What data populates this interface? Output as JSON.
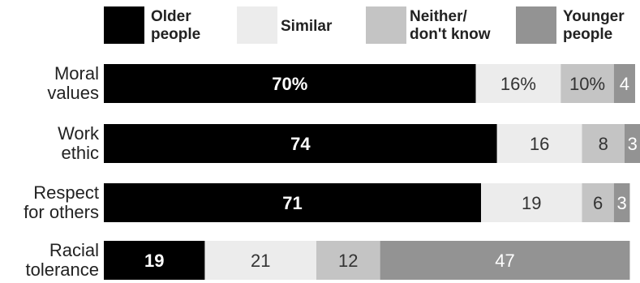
{
  "chart_data": {
    "type": "bar",
    "orientation": "horizontal",
    "stacked": true,
    "categories": [
      [
        "Moral",
        "values"
      ],
      [
        "Work",
        "ethic"
      ],
      [
        "Respect",
        "for others"
      ],
      [
        "Racial",
        "tolerance"
      ]
    ],
    "series": [
      {
        "name": [
          "Older",
          "people"
        ],
        "color": "#000000",
        "text_color": "#ffffff",
        "bold": true,
        "values": [
          70,
          74,
          71,
          19
        ],
        "labels": [
          "70%",
          "74",
          "71",
          "19"
        ]
      },
      {
        "name": [
          "Similar"
        ],
        "color": "#ececec",
        "text_color": "#333333",
        "bold": false,
        "values": [
          16,
          16,
          19,
          21
        ],
        "labels": [
          "16%",
          "16",
          "19",
          "21"
        ]
      },
      {
        "name": [
          "Neither/",
          "don't know"
        ],
        "color": "#c4c4c4",
        "text_color": "#333333",
        "bold": false,
        "values": [
          10,
          8,
          6,
          12
        ],
        "labels": [
          "10%",
          "8",
          "6",
          "12"
        ]
      },
      {
        "name": [
          "Younger",
          "people"
        ],
        "color": "#939393",
        "text_color": "#ffffff",
        "bold": false,
        "values": [
          4,
          3,
          3,
          47
        ],
        "labels": [
          "4",
          "3",
          "3",
          "47"
        ]
      }
    ],
    "xlim": [
      0,
      100
    ],
    "legend": "top",
    "grid": false
  }
}
